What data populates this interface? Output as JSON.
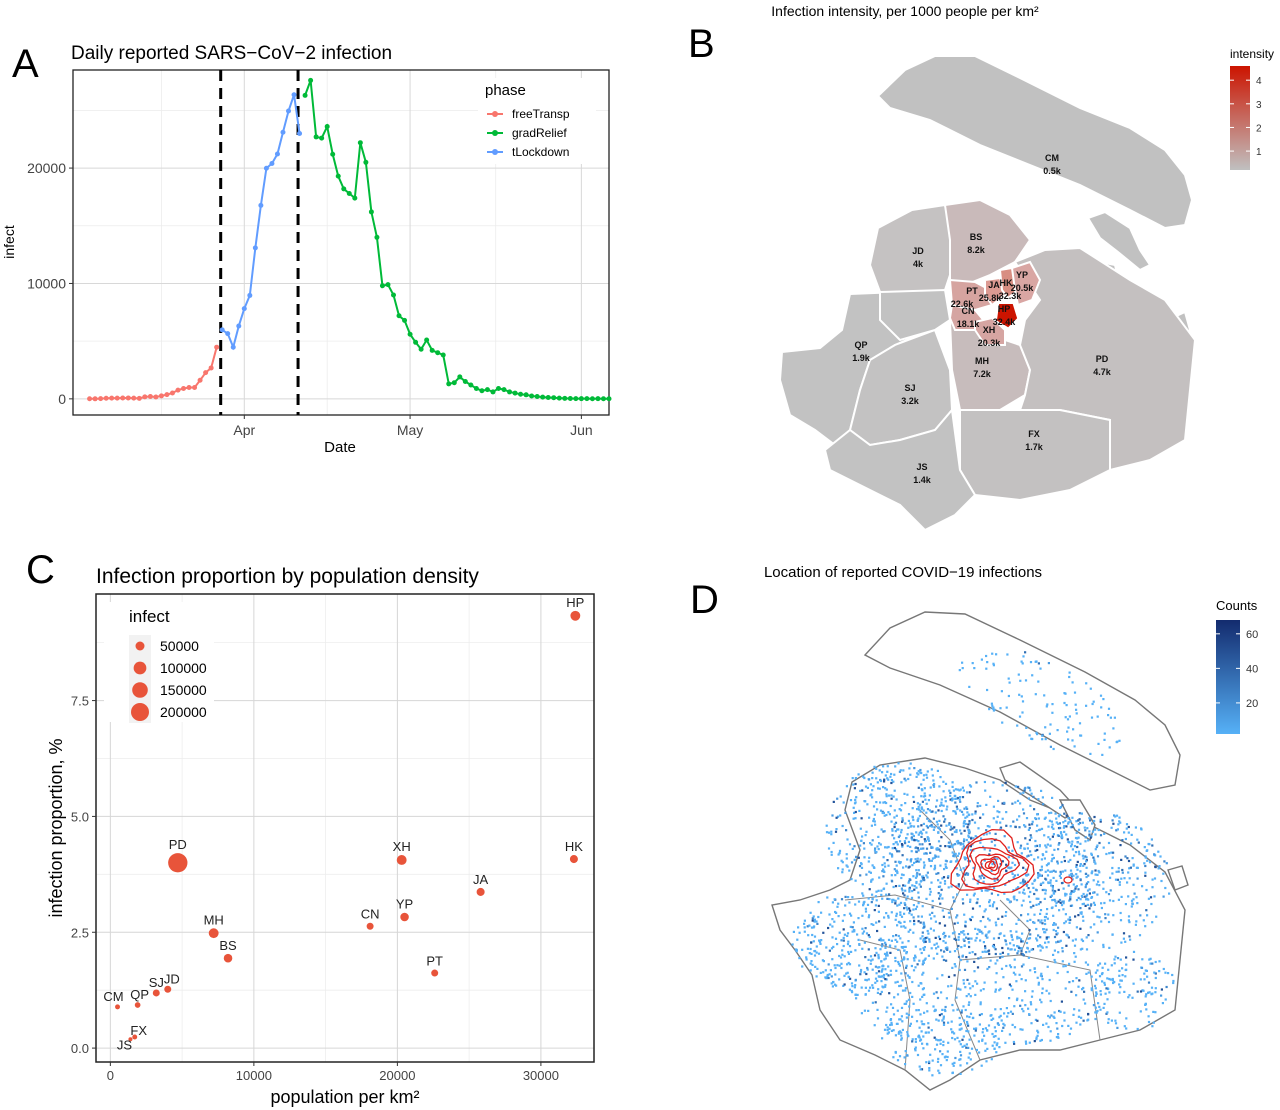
{
  "panels": {
    "a": {
      "letter": "A"
    },
    "b": {
      "letter": "B"
    },
    "c": {
      "letter": "C"
    },
    "d": {
      "letter": "D"
    }
  },
  "chart_data": [
    {
      "type": "line",
      "title": "Daily reported SARS−CoV−2 infection",
      "xlabel": "Date",
      "ylabel": "infect",
      "x_ticks": [
        "Apr",
        "May",
        "Jun"
      ],
      "x_tick_dates": [
        "2022-04-01",
        "2022-05-01",
        "2022-06-01"
      ],
      "y_ticks": [
        "0",
        "10000",
        "20000"
      ],
      "xlim": [
        "2022-03-01",
        "2022-06-06"
      ],
      "ylim": [
        -1400,
        28500
      ],
      "grid": true,
      "legend": {
        "title": "phase",
        "position": "top-right"
      },
      "vlines": [
        "2022-03-28",
        "2022-04-11"
      ],
      "series": [
        {
          "name": "freeTransp",
          "color": "#F8766D",
          "x": [
            "2022-03-04",
            "2022-03-05",
            "2022-03-06",
            "2022-03-07",
            "2022-03-08",
            "2022-03-09",
            "2022-03-10",
            "2022-03-11",
            "2022-03-12",
            "2022-03-13",
            "2022-03-14",
            "2022-03-15",
            "2022-03-16",
            "2022-03-17",
            "2022-03-18",
            "2022-03-19",
            "2022-03-20",
            "2022-03-21",
            "2022-03-22",
            "2022-03-23",
            "2022-03-24",
            "2022-03-25",
            "2022-03-26",
            "2022-03-27"
          ],
          "values": [
            5,
            3,
            16,
            55,
            62,
            64,
            75,
            78,
            64,
            41,
            169,
            202,
            158,
            260,
            366,
            510,
            758,
            896,
            981,
            983,
            1609,
            2269,
            2678,
            4477
          ]
        },
        {
          "name": "tLockdown",
          "color": "#619CFF",
          "x": [
            "2022-03-28",
            "2022-03-29",
            "2022-03-30",
            "2022-03-31",
            "2022-04-01",
            "2022-04-02",
            "2022-04-03",
            "2022-04-04",
            "2022-04-05",
            "2022-04-06",
            "2022-04-07",
            "2022-04-08",
            "2022-04-09",
            "2022-04-10",
            "2022-04-11"
          ],
          "values": [
            5982,
            5653,
            4477,
            6311,
            7820,
            8963,
            13086,
            16766,
            19982,
            20398,
            21222,
            23107,
            24943,
            26355,
            23000
          ]
        },
        {
          "name": "gradRelief",
          "color": "#00BA38",
          "x": [
            "2022-04-12",
            "2022-04-13",
            "2022-04-14",
            "2022-04-15",
            "2022-04-16",
            "2022-04-17",
            "2022-04-18",
            "2022-04-19",
            "2022-04-20",
            "2022-04-21",
            "2022-04-22",
            "2022-04-23",
            "2022-04-24",
            "2022-04-25",
            "2022-04-26",
            "2022-04-27",
            "2022-04-28",
            "2022-04-29",
            "2022-04-30",
            "2022-05-01",
            "2022-05-02",
            "2022-05-03",
            "2022-05-04",
            "2022-05-05",
            "2022-05-06",
            "2022-05-07",
            "2022-05-08",
            "2022-05-09",
            "2022-05-10",
            "2022-05-11",
            "2022-05-12",
            "2022-05-13",
            "2022-05-14",
            "2022-05-15",
            "2022-05-16",
            "2022-05-17",
            "2022-05-18",
            "2022-05-19",
            "2022-05-20",
            "2022-05-21",
            "2022-05-22",
            "2022-05-23",
            "2022-05-24",
            "2022-05-25",
            "2022-05-26",
            "2022-05-27",
            "2022-05-28",
            "2022-05-29",
            "2022-05-30",
            "2022-05-31",
            "2022-06-01",
            "2022-06-02",
            "2022-06-03",
            "2022-06-04",
            "2022-06-05",
            "2022-06-06"
          ],
          "values": [
            26300,
            27600,
            22700,
            22600,
            23600,
            21200,
            19300,
            18200,
            17800,
            17400,
            22200,
            20500,
            16200,
            14000,
            9800,
            9900,
            9000,
            7200,
            6800,
            5600,
            4900,
            4300,
            5100,
            4200,
            4000,
            3800,
            1300,
            1400,
            1900,
            1500,
            1200,
            900,
            700,
            800,
            600,
            900,
            800,
            600,
            500,
            400,
            350,
            250,
            200,
            150,
            120,
            100,
            60,
            40,
            30,
            20,
            15,
            20,
            10,
            15,
            10,
            5
          ]
        }
      ]
    },
    {
      "type": "choropleth",
      "title": "Infection intensity, per 1000 people per km²",
      "legend": {
        "title": "intensity",
        "ticks": [
          "1",
          "2",
          "3",
          "4"
        ],
        "position": "top-right",
        "low_color": "#c0c0c0",
        "high_color": "#cc1400"
      },
      "regions": [
        {
          "code": "CM",
          "value": "0.5k"
        },
        {
          "code": "BS",
          "value": "8.2k"
        },
        {
          "code": "JD",
          "value": "4k"
        },
        {
          "code": "YP",
          "value": "20.5k"
        },
        {
          "code": "JA",
          "value": "25.8k"
        },
        {
          "code": "HK",
          "value": "32.3k"
        },
        {
          "code": "PT",
          "value": "22.6k"
        },
        {
          "code": "CN",
          "value": "18.1k"
        },
        {
          "code": "HP",
          "value": "32.4k"
        },
        {
          "code": "XH",
          "value": "20.3k"
        },
        {
          "code": "QP",
          "value": "1.9k"
        },
        {
          "code": "MH",
          "value": "7.2k"
        },
        {
          "code": "PD",
          "value": "4.7k"
        },
        {
          "code": "SJ",
          "value": "3.2k"
        },
        {
          "code": "FX",
          "value": "1.7k"
        },
        {
          "code": "JS",
          "value": "1.4k"
        }
      ]
    },
    {
      "type": "scatter",
      "title": "Infection proportion by population density",
      "xlabel": "population per km²",
      "ylabel": "infection proportion, %",
      "x_ticks": [
        0,
        10000,
        20000,
        30000
      ],
      "y_ticks": [
        "0.0",
        "2.5",
        "5.0",
        "7.5"
      ],
      "xlim": [
        -1000,
        33700
      ],
      "ylim": [
        -0.3,
        9.8
      ],
      "grid": true,
      "point_color": "#E8543A",
      "legend": {
        "title": "infect",
        "position": "top-left",
        "entries": [
          {
            "label": "50000",
            "value": 50000
          },
          {
            "label": "100000",
            "value": 100000
          },
          {
            "label": "150000",
            "value": 150000
          },
          {
            "label": "200000",
            "value": 200000
          }
        ]
      },
      "points": [
        {
          "label": "HP",
          "x": 32400,
          "y": 9.33,
          "infect": 60000
        },
        {
          "label": "PD",
          "x": 4700,
          "y": 4.0,
          "infect": 230000
        },
        {
          "label": "XH",
          "x": 20300,
          "y": 4.06,
          "infect": 60000
        },
        {
          "label": "HK",
          "x": 32300,
          "y": 4.08,
          "infect": 40000
        },
        {
          "label": "JA",
          "x": 25800,
          "y": 3.37,
          "infect": 40000
        },
        {
          "label": "YP",
          "x": 20500,
          "y": 2.83,
          "infect": 45000
        },
        {
          "label": "CN",
          "x": 18100,
          "y": 2.63,
          "infect": 30000
        },
        {
          "label": "MH",
          "x": 7200,
          "y": 2.48,
          "infect": 60000
        },
        {
          "label": "BS",
          "x": 8200,
          "y": 1.94,
          "infect": 45000
        },
        {
          "label": "PT",
          "x": 22600,
          "y": 1.62,
          "infect": 30000
        },
        {
          "label": "JD",
          "x": 4000,
          "y": 1.27,
          "infect": 30000
        },
        {
          "label": "SJ",
          "x": 3200,
          "y": 1.19,
          "infect": 30000
        },
        {
          "label": "QP",
          "x": 1900,
          "y": 0.93,
          "infect": 20000
        },
        {
          "label": "CM",
          "x": 500,
          "y": 0.89,
          "infect": 15000
        },
        {
          "label": "FX",
          "x": 1700,
          "y": 0.24,
          "infect": 15000
        },
        {
          "label": "JS",
          "x": 1400,
          "y": 0.19,
          "infect": 10000
        }
      ]
    },
    {
      "type": "point-map",
      "title": "Location of reported COVID−19 infections",
      "legend": {
        "title": "Counts",
        "ticks": [
          "20",
          "40",
          "60"
        ],
        "position": "top-right",
        "low_color": "#56B1F7",
        "high_color": "#132B6E"
      },
      "contour_color": "#e0201c"
    }
  ]
}
